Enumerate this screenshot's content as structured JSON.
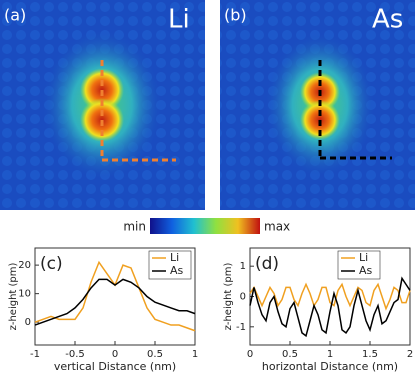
{
  "panels": [
    {
      "label": "(a)",
      "element": "Li"
    },
    {
      "label": "(b)",
      "element": "As"
    }
  ],
  "colorbar": {
    "min": "min",
    "max": "max"
  },
  "chart_data": [
    {
      "type": "line",
      "label": "(c)",
      "x_label": "vertical Distance (nm)",
      "y_label": "z-height (pm)",
      "xlim": [
        -1,
        1
      ],
      "xticks": [
        -1,
        -0.5,
        0,
        0.5,
        1
      ],
      "ylim": [
        -8,
        26
      ],
      "yticks": [
        0,
        10,
        20
      ],
      "legend": "upper right",
      "x": [
        -1,
        -0.9,
        -0.8,
        -0.7,
        -0.6,
        -0.5,
        -0.4,
        -0.3,
        -0.2,
        -0.1,
        0,
        0.1,
        0.2,
        0.3,
        0.4,
        0.5,
        0.6,
        0.7,
        0.8,
        0.9,
        1
      ],
      "series": [
        {
          "name": "Li",
          "color": "#f0a020",
          "values": [
            0,
            1,
            2,
            1,
            1,
            1,
            5,
            14,
            21,
            17,
            13,
            20,
            19,
            12,
            5,
            1,
            0,
            -1,
            -1,
            -2,
            -3
          ]
        },
        {
          "name": "As",
          "color": "#000000",
          "values": [
            -1,
            0,
            1,
            2,
            3,
            5,
            8,
            12,
            15,
            15,
            13,
            15,
            14,
            12,
            9,
            7,
            6,
            5,
            4,
            4,
            3
          ]
        }
      ]
    },
    {
      "type": "line",
      "label": "(d)",
      "x_label": "horizontal Distance (nm)",
      "y_label": "z-height (pm)",
      "xlim": [
        0,
        2
      ],
      "xticks": [
        0,
        0.5,
        1,
        1.5,
        2
      ],
      "ylim": [
        -1.6,
        1.6
      ],
      "yticks": [
        -1,
        0,
        1
      ],
      "legend": "upper left",
      "x": [
        0,
        0.05,
        0.1,
        0.15,
        0.2,
        0.25,
        0.3,
        0.35,
        0.4,
        0.45,
        0.5,
        0.55,
        0.6,
        0.65,
        0.7,
        0.75,
        0.8,
        0.85,
        0.9,
        0.95,
        1,
        1.05,
        1.1,
        1.15,
        1.2,
        1.25,
        1.3,
        1.35,
        1.4,
        1.45,
        1.5,
        1.55,
        1.6,
        1.65,
        1.7,
        1.75,
        1.8,
        1.85,
        1.9,
        1.95,
        2
      ],
      "series": [
        {
          "name": "Li",
          "color": "#f0a020",
          "values": [
            0.1,
            0.3,
            0,
            -0.3,
            0,
            0.3,
            0.1,
            -0.3,
            -0.1,
            0.3,
            0.3,
            -0.1,
            -0.3,
            0.1,
            0.4,
            0.1,
            -0.3,
            -0.1,
            0.3,
            0.3,
            -0.2,
            -0.3,
            0.2,
            0.4,
            0,
            -0.3,
            0,
            0.3,
            0.2,
            -0.2,
            -0.3,
            0.2,
            0.4,
            0,
            -0.4,
            -0.1,
            0.3,
            0.2,
            -0.2,
            -0.2,
            0.2
          ]
        },
        {
          "name": "As",
          "color": "#000000",
          "values": [
            -0.3,
            0.3,
            -0.2,
            -0.6,
            -0.8,
            -0.2,
            0,
            -0.5,
            -0.9,
            -1,
            -0.4,
            -0.2,
            -0.7,
            -1.2,
            -1.3,
            -0.8,
            -0.3,
            -0.6,
            -1.1,
            -1.2,
            -0.5,
            0.1,
            -0.3,
            -1.1,
            -1.2,
            -1,
            -0.3,
            0.2,
            -0.3,
            -0.8,
            -1.1,
            -0.6,
            -0.3,
            -0.9,
            -0.8,
            -0.5,
            -0.2,
            -0.1,
            0.6,
            0.4,
            0.2
          ]
        }
      ]
    }
  ]
}
